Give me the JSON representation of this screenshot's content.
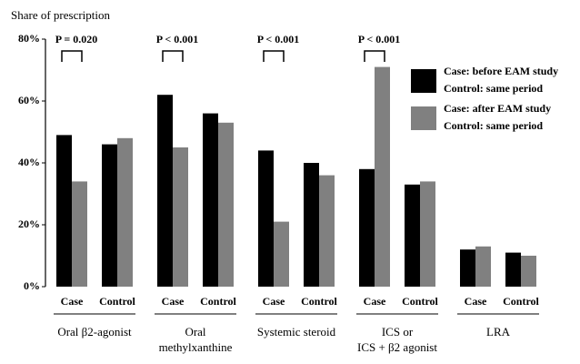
{
  "chart_data": {
    "type": "bar",
    "ylabel": "Share of prescription",
    "categories": [
      "Case",
      "Control",
      "Case",
      "Control",
      "Case",
      "Control",
      "Case",
      "Control",
      "Case",
      "Control"
    ],
    "groups": [
      [
        "Oral β2-agonist"
      ],
      [
        "Oral",
        "methylxanthine"
      ],
      [
        "Systemic steroid"
      ],
      [
        "ICS or",
        "ICS + β2 agonist"
      ],
      [
        "LRA"
      ]
    ],
    "annotations": [
      "P = 0.020",
      "P < 0.001",
      "P < 0.001",
      "P < 0.001",
      null
    ],
    "series": [
      {
        "name": "Case: before EAM study",
        "name_control": "Control: same period",
        "color": "#000000",
        "values": [
          49,
          46,
          62,
          56,
          44,
          40,
          38,
          33,
          12,
          11
        ]
      },
      {
        "name": "Case: after EAM study",
        "name_control": "Control: same period",
        "color": "#808080",
        "values": [
          34,
          48,
          45,
          53,
          21,
          36,
          71,
          34,
          13,
          10
        ]
      }
    ],
    "ylim": [
      0,
      80
    ],
    "yticks": [
      {
        "value": 0,
        "label": "0%"
      },
      {
        "value": 20,
        "label": "20%"
      },
      {
        "value": 40,
        "label": "40%"
      },
      {
        "value": 60,
        "label": "60%"
      },
      {
        "value": 80,
        "label": "80%"
      }
    ],
    "legend": "upper right"
  }
}
